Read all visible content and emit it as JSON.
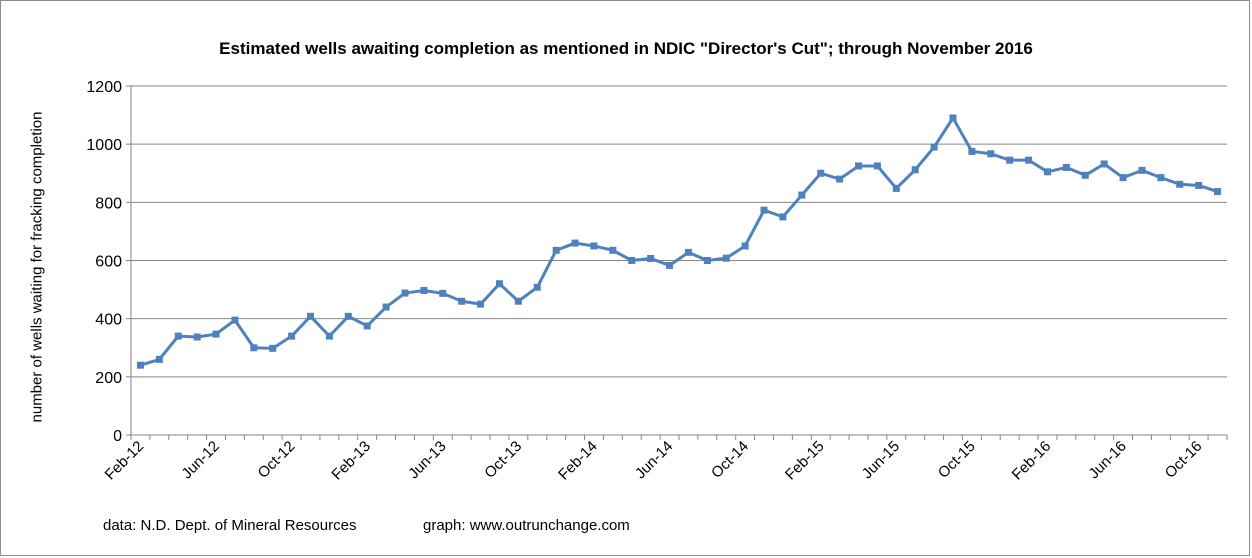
{
  "chart_data": {
    "type": "line",
    "title": "Estimated wells awaiting completion as mentioned in NDIC \"Director's Cut\"; through November 2016",
    "xlabel": "",
    "ylabel": "number of wells waiting for fracking completion",
    "ylim": [
      0,
      1200
    ],
    "yticks": [
      "0",
      "200",
      "400",
      "600",
      "800",
      "1000",
      "1200"
    ],
    "grid": "horizontal",
    "legend": "none",
    "line_color": "#4F81BD",
    "x": [
      "Feb-12",
      "Mar-12",
      "Apr-12",
      "May-12",
      "Jun-12",
      "Jul-12",
      "Aug-12",
      "Sep-12",
      "Oct-12",
      "Nov-12",
      "Dec-12",
      "Jan-13",
      "Feb-13",
      "Mar-13",
      "Apr-13",
      "May-13",
      "Jun-13",
      "Jul-13",
      "Aug-13",
      "Sep-13",
      "Oct-13",
      "Nov-13",
      "Dec-13",
      "Jan-14",
      "Feb-14",
      "Mar-14",
      "Apr-14",
      "May-14",
      "Jun-14",
      "Jul-14",
      "Aug-14",
      "Sep-14",
      "Oct-14",
      "Nov-14",
      "Dec-14",
      "Jan-15",
      "Feb-15",
      "Mar-15",
      "Apr-15",
      "May-15",
      "Jun-15",
      "Jul-15",
      "Aug-15",
      "Sep-15",
      "Oct-15",
      "Nov-15",
      "Dec-15",
      "Jan-16",
      "Feb-16",
      "Mar-16",
      "Apr-16",
      "May-16",
      "Jun-16",
      "Jul-16",
      "Aug-16",
      "Sep-16",
      "Oct-16",
      "Nov-16"
    ],
    "x_tick_labels": [
      "Feb-12",
      "Jun-12",
      "Oct-12",
      "Feb-13",
      "Jun-13",
      "Oct-13",
      "Feb-14",
      "Jun-14",
      "Oct-14",
      "Feb-15",
      "Jun-15",
      "Oct-15",
      "Feb-16",
      "Jun-16",
      "Oct-16"
    ],
    "series": [
      {
        "values": [
          240,
          260,
          340,
          337,
          347,
          395,
          300,
          298,
          340,
          408,
          340,
          408,
          375,
          440,
          488,
          497,
          487,
          460,
          450,
          520,
          460,
          508,
          635,
          660,
          650,
          635,
          600,
          607,
          583,
          628,
          600,
          608,
          650,
          773,
          750,
          825,
          900,
          880,
          925,
          925,
          848,
          912,
          990,
          1090,
          975,
          967,
          945,
          945,
          905,
          920,
          893,
          932,
          885,
          910,
          885,
          862,
          858,
          837
        ]
      }
    ]
  },
  "footer": {
    "source": "data: N.D. Dept. of Mineral Resources",
    "graph": "graph:  www.outrunchange.com"
  }
}
